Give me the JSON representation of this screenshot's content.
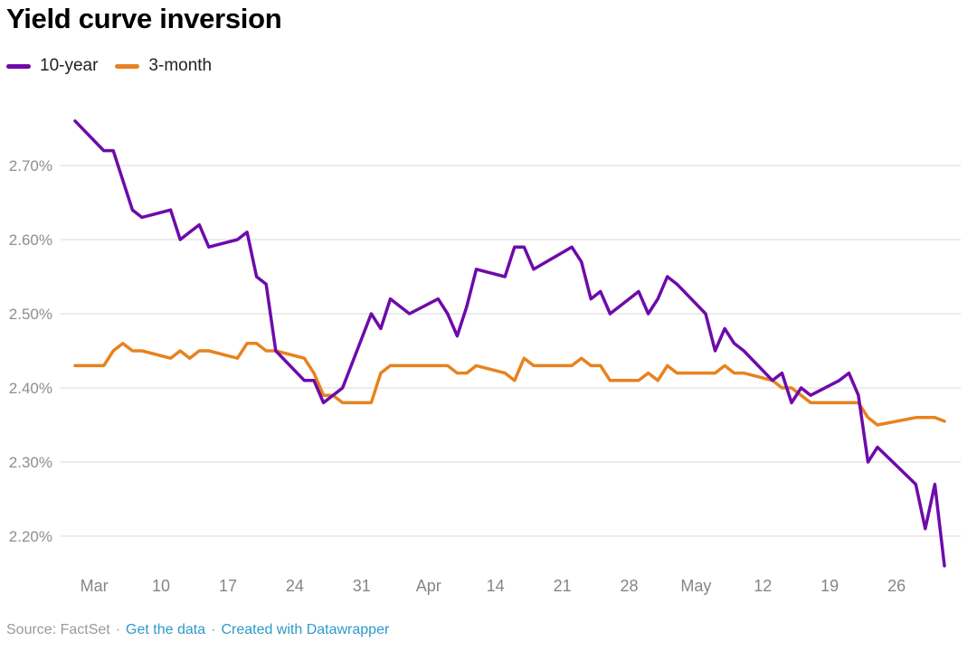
{
  "title": "Yield curve inversion",
  "legend": {
    "items": [
      {
        "label": "10-year",
        "color": "#6e0aaa"
      },
      {
        "label": "3-month",
        "color": "#e8821e"
      }
    ]
  },
  "footer": {
    "source": "Source: FactSet",
    "separator": "·",
    "links": [
      "Get the data",
      "Created with Datawrapper"
    ],
    "link_color": "#2e9ac9"
  },
  "chart_data": {
    "type": "line",
    "title": "Yield curve inversion",
    "xlabel": "",
    "ylabel": "",
    "ylim": [
      2.14,
      2.8
    ],
    "grid": "horizontal",
    "gridline_color": "#dadada",
    "legend_position": "top-left",
    "y_ticks": [
      {
        "value": 2.2,
        "label": "2.20%"
      },
      {
        "value": 2.3,
        "label": "2.30%"
      },
      {
        "value": 2.4,
        "label": "2.40%"
      },
      {
        "value": 2.5,
        "label": "2.50%"
      },
      {
        "value": 2.6,
        "label": "2.60%"
      },
      {
        "value": 2.7,
        "label": "2.70%"
      }
    ],
    "x_ticks": [
      {
        "label": "Mar",
        "day_offset": 2
      },
      {
        "label": "10",
        "day_offset": 9
      },
      {
        "label": "17",
        "day_offset": 16
      },
      {
        "label": "24",
        "day_offset": 23
      },
      {
        "label": "31",
        "day_offset": 30
      },
      {
        "label": "Apr",
        "day_offset": 37
      },
      {
        "label": "14",
        "day_offset": 44
      },
      {
        "label": "21",
        "day_offset": 51
      },
      {
        "label": "28",
        "day_offset": 58
      },
      {
        "label": "May",
        "day_offset": 65
      },
      {
        "label": "12",
        "day_offset": 72
      },
      {
        "label": "19",
        "day_offset": 79
      },
      {
        "label": "26",
        "day_offset": 86
      }
    ],
    "x": [
      "Mar 1",
      "Mar 4",
      "Mar 5",
      "Mar 6",
      "Mar 7",
      "Mar 8",
      "Mar 11",
      "Mar 12",
      "Mar 13",
      "Mar 14",
      "Mar 15",
      "Mar 18",
      "Mar 19",
      "Mar 20",
      "Mar 21",
      "Mar 22",
      "Mar 25",
      "Mar 26",
      "Mar 27",
      "Mar 28",
      "Mar 29",
      "Apr 1",
      "Apr 2",
      "Apr 3",
      "Apr 4",
      "Apr 5",
      "Apr 8",
      "Apr 9",
      "Apr 10",
      "Apr 11",
      "Apr 12",
      "Apr 15",
      "Apr 16",
      "Apr 17",
      "Apr 18",
      "Apr 22",
      "Apr 23",
      "Apr 24",
      "Apr 25",
      "Apr 26",
      "Apr 29",
      "Apr 30",
      "May 1",
      "May 2",
      "May 3",
      "May 6",
      "May 7",
      "May 8",
      "May 9",
      "May 10",
      "May 13",
      "May 14",
      "May 15",
      "May 16",
      "May 17",
      "May 20",
      "May 21",
      "May 22",
      "May 23",
      "May 24",
      "May 28",
      "May 29",
      "May 30",
      "May 31"
    ],
    "x_day_offsets": [
      0,
      3,
      4,
      5,
      6,
      7,
      10,
      11,
      12,
      13,
      14,
      17,
      18,
      19,
      20,
      21,
      24,
      25,
      26,
      27,
      28,
      31,
      32,
      33,
      34,
      35,
      38,
      39,
      40,
      41,
      42,
      45,
      46,
      47,
      48,
      52,
      53,
      54,
      55,
      56,
      59,
      60,
      61,
      62,
      63,
      66,
      67,
      68,
      69,
      70,
      73,
      74,
      75,
      76,
      77,
      80,
      81,
      82,
      83,
      84,
      88,
      89,
      90,
      91
    ],
    "series": [
      {
        "name": "10-year",
        "color": "#6e0aaa",
        "values": [
          2.76,
          2.72,
          2.72,
          2.68,
          2.64,
          2.63,
          2.64,
          2.6,
          2.61,
          2.62,
          2.59,
          2.6,
          2.61,
          2.55,
          2.54,
          2.45,
          2.41,
          2.41,
          2.38,
          2.39,
          2.4,
          2.5,
          2.48,
          2.52,
          2.51,
          2.5,
          2.52,
          2.5,
          2.47,
          2.51,
          2.56,
          2.55,
          2.59,
          2.59,
          2.56,
          2.59,
          2.57,
          2.52,
          2.53,
          2.5,
          2.53,
          2.5,
          2.52,
          2.55,
          2.54,
          2.5,
          2.45,
          2.48,
          2.46,
          2.45,
          2.41,
          2.42,
          2.38,
          2.4,
          2.39,
          2.41,
          2.42,
          2.39,
          2.3,
          2.32,
          2.27,
          2.21,
          2.27,
          2.16
        ]
      },
      {
        "name": "3-month",
        "color": "#e8821e",
        "values": [
          2.43,
          2.43,
          2.45,
          2.46,
          2.45,
          2.45,
          2.44,
          2.45,
          2.44,
          2.45,
          2.45,
          2.44,
          2.46,
          2.46,
          2.45,
          2.45,
          2.44,
          2.42,
          2.39,
          2.39,
          2.38,
          2.38,
          2.42,
          2.43,
          2.43,
          2.43,
          2.43,
          2.43,
          2.42,
          2.42,
          2.43,
          2.42,
          2.41,
          2.44,
          2.43,
          2.43,
          2.44,
          2.43,
          2.43,
          2.41,
          2.41,
          2.42,
          2.41,
          2.43,
          2.42,
          2.42,
          2.42,
          2.43,
          2.42,
          2.42,
          2.41,
          2.4,
          2.4,
          2.39,
          2.38,
          2.38,
          2.38,
          2.38,
          2.36,
          2.35,
          2.36,
          2.36,
          2.36,
          2.355
        ]
      }
    ]
  }
}
